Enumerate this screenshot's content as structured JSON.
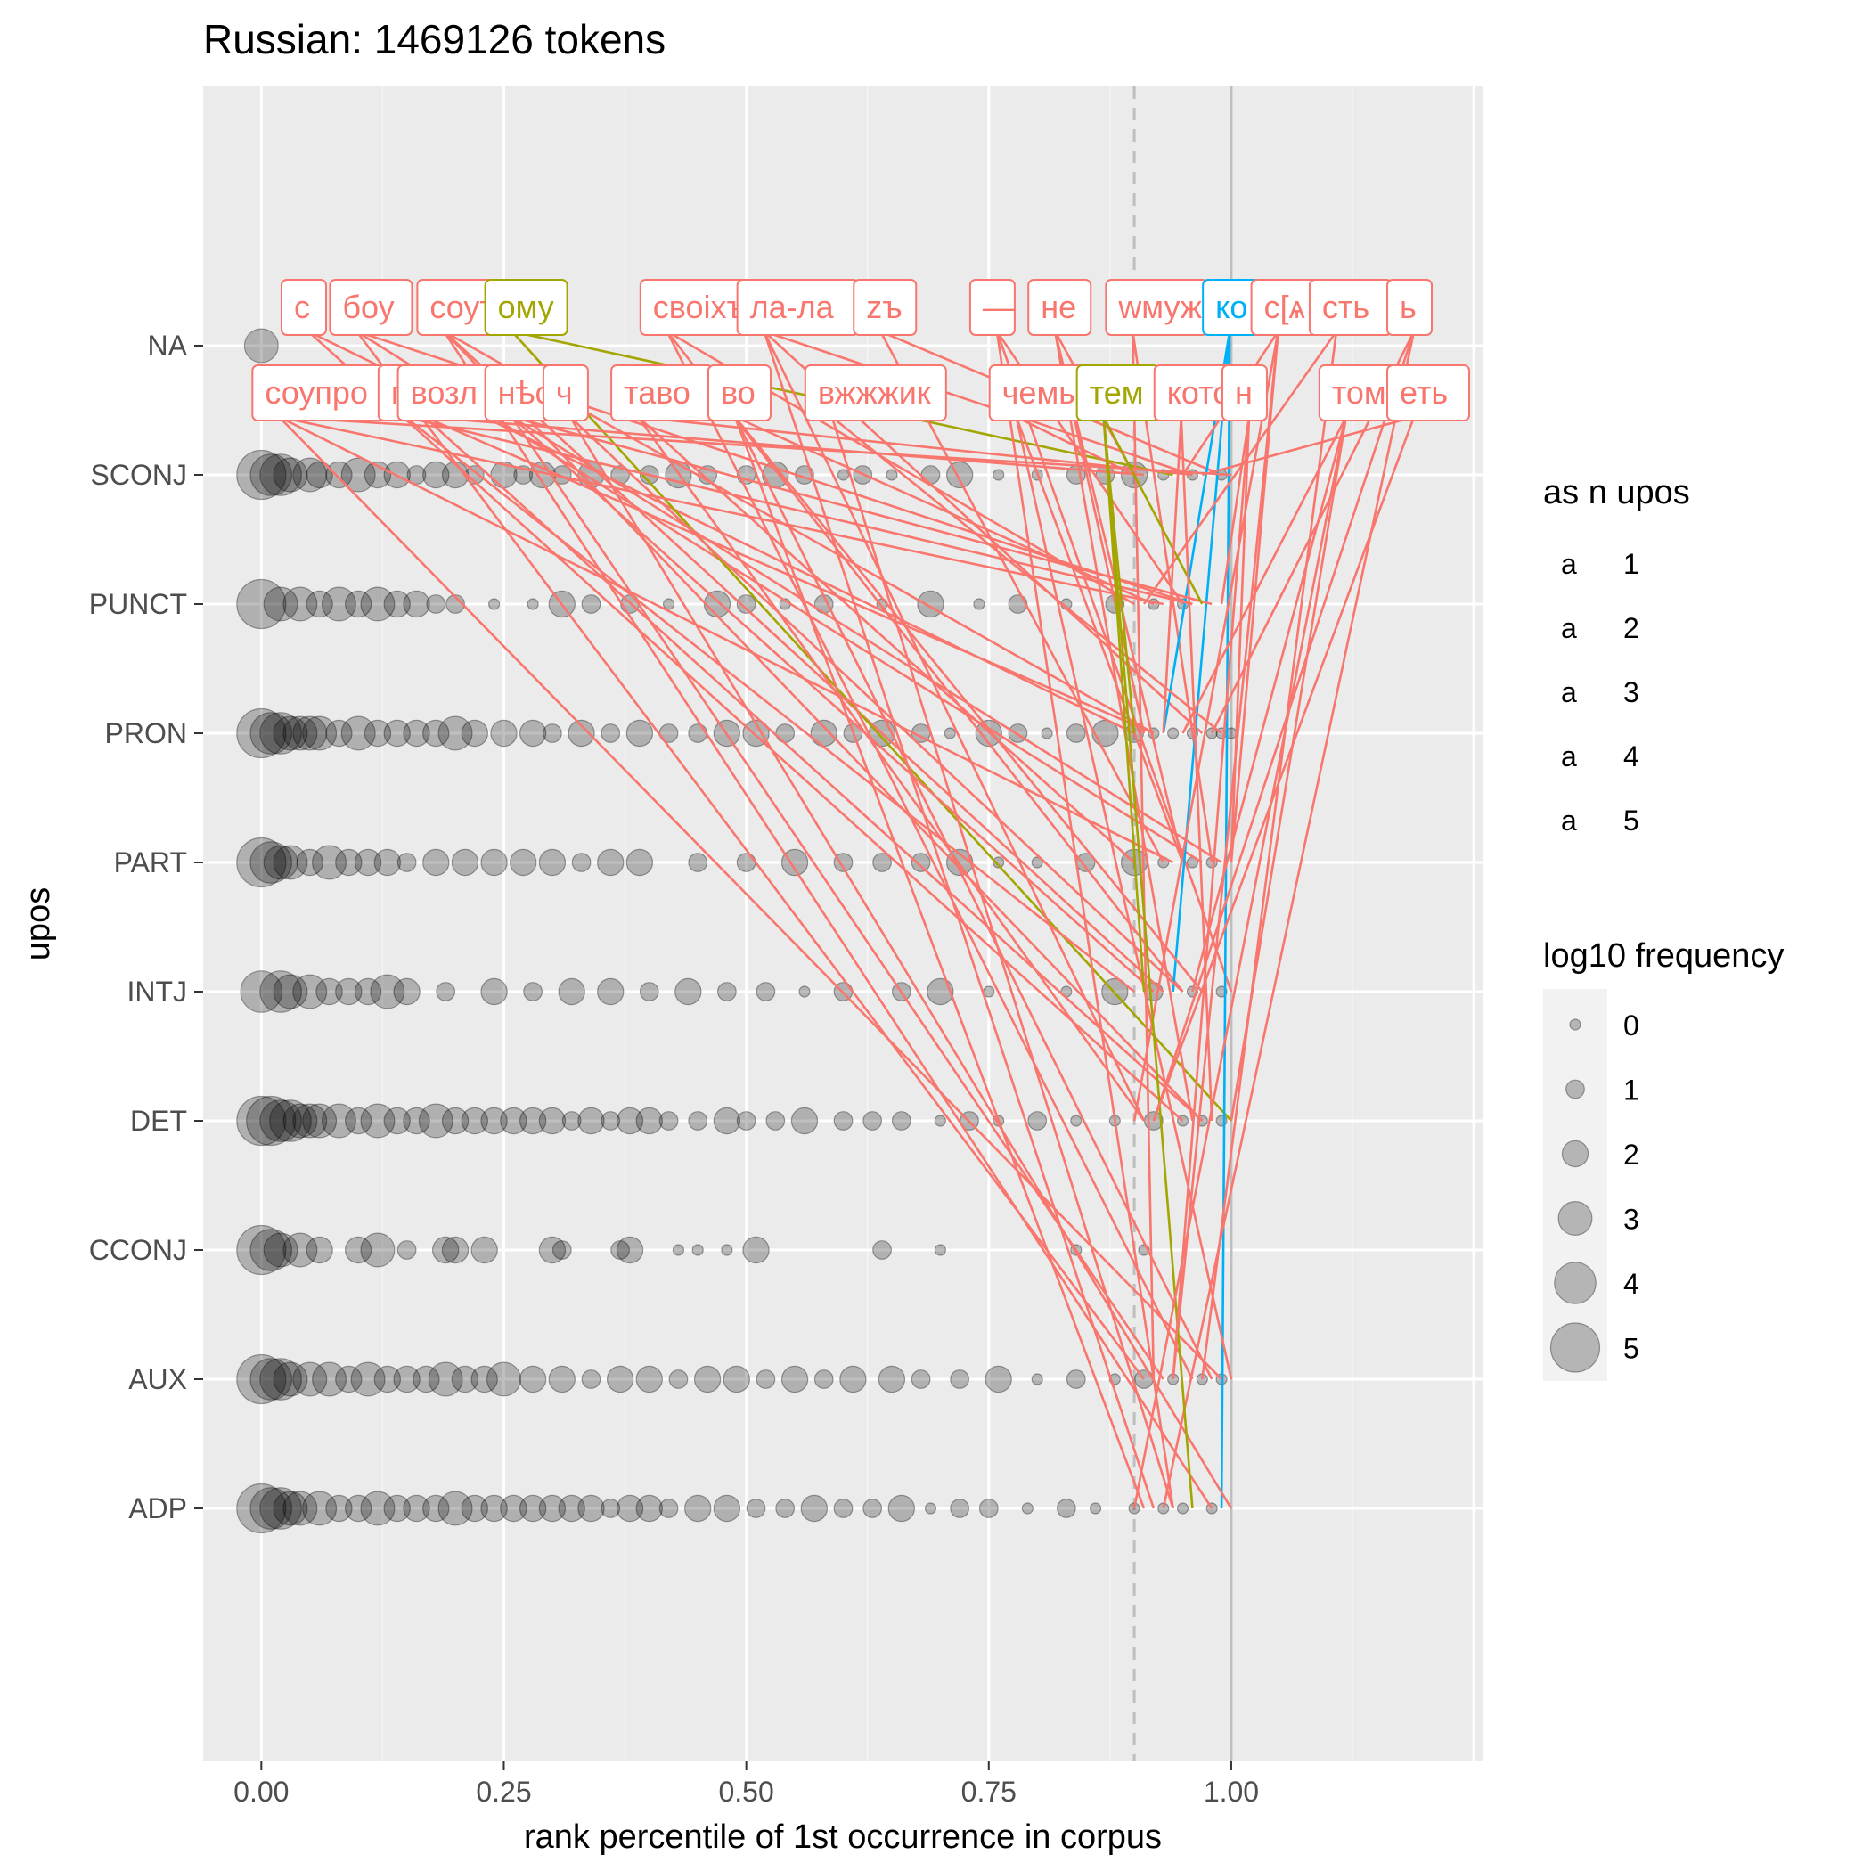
{
  "chart_data": {
    "type": "scatter",
    "title": "Russian: 1469126 tokens",
    "xlabel": "rank percentile of 1st occurrence in corpus",
    "ylabel": "upos",
    "xlim": [
      -0.06,
      1.26
    ],
    "x_ticks": [
      0,
      0.25,
      0.5,
      0.75,
      1
    ],
    "x_tick_labels": [
      "0.00",
      "0.25",
      "0.50",
      "0.75",
      "1.00"
    ],
    "y_categories": [
      "NA",
      "SCONJ",
      "PUNCT",
      "PRON",
      "PART",
      "INTJ",
      "DET",
      "CCONJ",
      "AUX",
      "ADP"
    ],
    "reference_lines": [
      {
        "x": 0.9,
        "style": "dashed"
      },
      {
        "x": 1.0,
        "style": "solid"
      }
    ],
    "grid": true,
    "points_series": [
      {
        "upos": "NA",
        "x": [
          0.0
        ],
        "log10_freq": [
          3
        ]
      },
      {
        "upos": "SCONJ",
        "x": [
          0.0,
          0.01,
          0.02,
          0.03,
          0.05,
          0.06,
          0.08,
          0.1,
          0.12,
          0.14,
          0.16,
          0.18,
          0.2,
          0.22,
          0.25,
          0.27,
          0.29,
          0.31,
          0.34,
          0.37,
          0.4,
          0.43,
          0.46,
          0.5,
          0.53,
          0.56,
          0.6,
          0.62,
          0.65,
          0.69,
          0.72,
          0.76,
          0.8,
          0.84,
          0.87,
          0.9,
          0.93,
          0.96,
          0.99
        ],
        "log10_freq": [
          5,
          4,
          4,
          3,
          3,
          2,
          2,
          3,
          2,
          2,
          1,
          2,
          2,
          1,
          2,
          1,
          2,
          1,
          2,
          1,
          1,
          2,
          1,
          1,
          2,
          1,
          0,
          1,
          0,
          1,
          2,
          0,
          0,
          1,
          1,
          2,
          0,
          0,
          0
        ]
      },
      {
        "upos": "PUNCT",
        "x": [
          0.0,
          0.02,
          0.04,
          0.06,
          0.08,
          0.1,
          0.12,
          0.14,
          0.16,
          0.18,
          0.2,
          0.24,
          0.28,
          0.31,
          0.34,
          0.38,
          0.42,
          0.47,
          0.5,
          0.54,
          0.58,
          0.64,
          0.69,
          0.74,
          0.78,
          0.83,
          0.88,
          0.92,
          0.95
        ],
        "log10_freq": [
          5,
          3,
          3,
          2,
          3,
          2,
          3,
          2,
          2,
          1,
          1,
          0,
          0,
          2,
          1,
          1,
          0,
          2,
          1,
          0,
          1,
          0,
          2,
          0,
          1,
          0,
          1,
          0,
          0
        ]
      },
      {
        "upos": "PRON",
        "x": [
          0.0,
          0.01,
          0.02,
          0.03,
          0.04,
          0.05,
          0.06,
          0.08,
          0.1,
          0.12,
          0.14,
          0.16,
          0.18,
          0.2,
          0.22,
          0.25,
          0.28,
          0.3,
          0.33,
          0.36,
          0.39,
          0.42,
          0.45,
          0.48,
          0.51,
          0.54,
          0.58,
          0.61,
          0.64,
          0.68,
          0.71,
          0.75,
          0.78,
          0.81,
          0.84,
          0.87,
          0.9,
          0.92,
          0.94,
          0.96,
          0.98,
          0.99,
          1.0
        ],
        "log10_freq": [
          5,
          4,
          4,
          3,
          3,
          3,
          3,
          2,
          3,
          2,
          2,
          2,
          2,
          3,
          2,
          2,
          2,
          1,
          2,
          1,
          2,
          1,
          1,
          2,
          2,
          1,
          2,
          1,
          2,
          1,
          0,
          2,
          1,
          0,
          1,
          2,
          1,
          0,
          0,
          0,
          0,
          0,
          0
        ]
      },
      {
        "upos": "PART",
        "x": [
          0.0,
          0.01,
          0.02,
          0.03,
          0.05,
          0.07,
          0.09,
          0.11,
          0.13,
          0.15,
          0.18,
          0.21,
          0.24,
          0.27,
          0.3,
          0.33,
          0.36,
          0.39,
          0.45,
          0.5,
          0.55,
          0.6,
          0.64,
          0.68,
          0.72,
          0.76,
          0.8,
          0.85,
          0.9,
          0.93,
          0.96,
          0.98
        ],
        "log10_freq": [
          5,
          4,
          3,
          3,
          2,
          3,
          2,
          2,
          2,
          1,
          2,
          2,
          2,
          2,
          2,
          1,
          2,
          2,
          1,
          1,
          2,
          1,
          1,
          1,
          2,
          0,
          0,
          1,
          2,
          0,
          0,
          0
        ]
      },
      {
        "upos": "INTJ",
        "x": [
          0.0,
          0.02,
          0.03,
          0.05,
          0.07,
          0.09,
          0.11,
          0.13,
          0.15,
          0.19,
          0.24,
          0.28,
          0.32,
          0.36,
          0.4,
          0.44,
          0.48,
          0.52,
          0.56,
          0.6,
          0.66,
          0.7,
          0.75,
          0.83,
          0.88,
          0.92,
          0.96,
          0.99
        ],
        "log10_freq": [
          4,
          4,
          3,
          3,
          2,
          2,
          2,
          3,
          2,
          1,
          2,
          1,
          2,
          2,
          1,
          2,
          1,
          1,
          0,
          1,
          1,
          2,
          0,
          0,
          2,
          1,
          0,
          0
        ]
      },
      {
        "upos": "DET",
        "x": [
          0.0,
          0.01,
          0.02,
          0.03,
          0.04,
          0.05,
          0.06,
          0.08,
          0.1,
          0.12,
          0.14,
          0.16,
          0.18,
          0.2,
          0.22,
          0.24,
          0.26,
          0.28,
          0.3,
          0.32,
          0.34,
          0.36,
          0.38,
          0.4,
          0.42,
          0.45,
          0.48,
          0.5,
          0.53,
          0.56,
          0.6,
          0.63,
          0.66,
          0.7,
          0.73,
          0.76,
          0.8,
          0.84,
          0.88,
          0.92,
          0.95,
          0.97,
          0.99
        ],
        "log10_freq": [
          5,
          5,
          4,
          4,
          3,
          3,
          3,
          3,
          2,
          3,
          2,
          2,
          3,
          2,
          2,
          2,
          2,
          2,
          2,
          1,
          2,
          1,
          2,
          2,
          1,
          1,
          2,
          1,
          1,
          2,
          1,
          1,
          1,
          0,
          1,
          0,
          1,
          0,
          0,
          1,
          0,
          0,
          0
        ]
      },
      {
        "upos": "CCONJ",
        "x": [
          0.0,
          0.01,
          0.02,
          0.04,
          0.06,
          0.1,
          0.12,
          0.15,
          0.19,
          0.2,
          0.23,
          0.3,
          0.31,
          0.37,
          0.38,
          0.43,
          0.45,
          0.48,
          0.51,
          0.64,
          0.7,
          0.84,
          0.91
        ],
        "log10_freq": [
          5,
          4,
          3,
          3,
          2,
          2,
          3,
          1,
          2,
          2,
          2,
          2,
          1,
          1,
          2,
          0,
          0,
          0,
          2,
          1,
          0,
          0,
          0
        ]
      },
      {
        "upos": "AUX",
        "x": [
          0.0,
          0.01,
          0.02,
          0.03,
          0.05,
          0.07,
          0.09,
          0.11,
          0.13,
          0.15,
          0.17,
          0.19,
          0.21,
          0.23,
          0.25,
          0.28,
          0.31,
          0.34,
          0.37,
          0.4,
          0.43,
          0.46,
          0.49,
          0.52,
          0.55,
          0.58,
          0.61,
          0.65,
          0.68,
          0.72,
          0.76,
          0.8,
          0.84,
          0.88,
          0.91,
          0.94,
          0.97,
          0.99
        ],
        "log10_freq": [
          5,
          4,
          4,
          3,
          3,
          3,
          2,
          3,
          2,
          2,
          2,
          3,
          2,
          2,
          3,
          2,
          2,
          1,
          2,
          2,
          1,
          2,
          2,
          1,
          2,
          1,
          2,
          2,
          1,
          1,
          2,
          0,
          1,
          0,
          1,
          0,
          0,
          0
        ]
      },
      {
        "upos": "ADP",
        "x": [
          0.0,
          0.01,
          0.02,
          0.03,
          0.04,
          0.06,
          0.08,
          0.1,
          0.12,
          0.14,
          0.16,
          0.18,
          0.2,
          0.22,
          0.24,
          0.26,
          0.28,
          0.3,
          0.32,
          0.34,
          0.36,
          0.38,
          0.4,
          0.42,
          0.45,
          0.48,
          0.51,
          0.54,
          0.57,
          0.6,
          0.63,
          0.66,
          0.69,
          0.72,
          0.75,
          0.79,
          0.83,
          0.86,
          0.9,
          0.93,
          0.95,
          0.98
        ],
        "log10_freq": [
          5,
          4,
          4,
          3,
          3,
          3,
          2,
          2,
          3,
          2,
          2,
          2,
          3,
          2,
          2,
          2,
          2,
          2,
          2,
          2,
          1,
          2,
          2,
          1,
          2,
          2,
          1,
          1,
          2,
          1,
          1,
          2,
          0,
          1,
          1,
          0,
          1,
          0,
          0,
          0,
          0,
          0
        ]
      }
    ],
    "token_labels": [
      {
        "text": "с",
        "x": 0.03,
        "row": 1,
        "n_upos": 1
      },
      {
        "text": "боу",
        "x": 0.08,
        "row": 1,
        "n_upos": 1
      },
      {
        "text": "соут҃",
        "x": 0.17,
        "row": 1,
        "n_upos": 1
      },
      {
        "text": "ому",
        "x": 0.24,
        "row": 1,
        "n_upos": 2
      },
      {
        "text": "своіхъ",
        "x": 0.4,
        "row": 1,
        "n_upos": 1
      },
      {
        "text": "ла-ла",
        "x": 0.5,
        "row": 1,
        "n_upos": 1
      },
      {
        "text": "zъ",
        "x": 0.62,
        "row": 1,
        "n_upos": 1
      },
      {
        "text": "—",
        "x": 0.74,
        "row": 1,
        "n_upos": 1
      },
      {
        "text": "не",
        "x": 0.8,
        "row": 1,
        "n_upos": 1
      },
      {
        "text": "wмуж",
        "x": 0.88,
        "row": 1,
        "n_upos": 1
      },
      {
        "text": "ко",
        "x": 0.98,
        "row": 1,
        "n_upos": 4
      },
      {
        "text": "с[ѧ",
        "x": 1.03,
        "row": 1,
        "n_upos": 1
      },
      {
        "text": "сть",
        "x": 1.09,
        "row": 1,
        "n_upos": 1
      },
      {
        "text": "ь",
        "x": 1.17,
        "row": 1,
        "n_upos": 1
      },
      {
        "text": "соупро",
        "x": 0.0,
        "row": 2,
        "n_upos": 1
      },
      {
        "text": "п",
        "x": 0.13,
        "row": 2,
        "n_upos": 1
      },
      {
        "text": "возл",
        "x": 0.15,
        "row": 2,
        "n_upos": 1
      },
      {
        "text": "нѣс",
        "x": 0.24,
        "row": 2,
        "n_upos": 1
      },
      {
        "text": "ч",
        "x": 0.3,
        "row": 2,
        "n_upos": 1
      },
      {
        "text": "таво",
        "x": 0.37,
        "row": 2,
        "n_upos": 1
      },
      {
        "text": "во",
        "x": 0.47,
        "row": 2,
        "n_upos": 1
      },
      {
        "text": "вжжжик",
        "x": 0.57,
        "row": 2,
        "n_upos": 1
      },
      {
        "text": "чемы",
        "x": 0.76,
        "row": 2,
        "n_upos": 1
      },
      {
        "text": "тем",
        "x": 0.85,
        "row": 2,
        "n_upos": 2
      },
      {
        "text": "кото",
        "x": 0.93,
        "row": 2,
        "n_upos": 1
      },
      {
        "text": "н",
        "x": 1.0,
        "row": 2,
        "n_upos": 1
      },
      {
        "text": "томъже",
        "x": 1.1,
        "row": 2,
        "n_upos": 1
      },
      {
        "text": "еть",
        "x": 1.17,
        "row": 2,
        "n_upos": 1
      }
    ],
    "legend": {
      "color": {
        "title": "as n upos",
        "symbol": "a",
        "entries": [
          {
            "label": "1",
            "color": "#F8766D"
          },
          {
            "label": "2",
            "color": "#A3A500"
          },
          {
            "label": "3",
            "color": "#00BF7D"
          },
          {
            "label": "4",
            "color": "#00B0F6"
          },
          {
            "label": "5",
            "color": "#E76BF3"
          }
        ]
      },
      "size": {
        "title": "log10 frequency",
        "entries": [
          "0",
          "1",
          "2",
          "3",
          "4",
          "5"
        ]
      },
      "placement": "right"
    }
  }
}
